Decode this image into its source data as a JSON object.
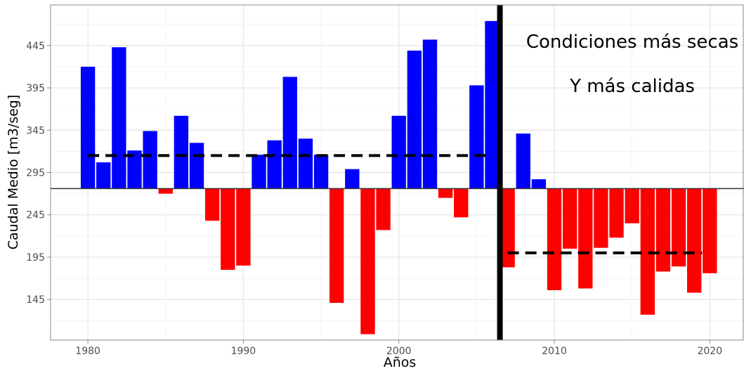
{
  "chart_data": {
    "type": "bar",
    "xlabel": "Años",
    "ylabel": "Caudal Medio [m3/seg]",
    "x_ticks": [
      1980,
      1990,
      2000,
      2010,
      2020
    ],
    "y_ticks": [
      145,
      195,
      245,
      295,
      345,
      395,
      445
    ],
    "xlim": [
      1977.6,
      2022.2
    ],
    "ylim": [
      97,
      493
    ],
    "baseline": 276,
    "grid": true,
    "bar_colors": {
      "above": "#0000ff",
      "below": "#ff0000"
    },
    "years": [
      1980,
      1981,
      1982,
      1983,
      1984,
      1985,
      1986,
      1987,
      1988,
      1989,
      1990,
      1991,
      1992,
      1993,
      1994,
      1995,
      1996,
      1997,
      1998,
      1999,
      2000,
      2001,
      2002,
      2003,
      2004,
      2005,
      2006,
      2007,
      2008,
      2009,
      2010,
      2011,
      2012,
      2013,
      2014,
      2015,
      2016,
      2017,
      2018,
      2019,
      2020
    ],
    "values": [
      420,
      307,
      443,
      321,
      344,
      270,
      362,
      330,
      238,
      180,
      185,
      316,
      333,
      408,
      335,
      316,
      141,
      299,
      104,
      227,
      362,
      439,
      452,
      265,
      242,
      398,
      474,
      183,
      341,
      287,
      156,
      205,
      158,
      206,
      218,
      235,
      127,
      178,
      184,
      153,
      176
    ],
    "reference_lines": [
      {
        "value": 315,
        "from": 1980,
        "to": 2006
      },
      {
        "value": 200,
        "from": 2007,
        "to": 2019.5
      }
    ],
    "divider_x": 2006.5,
    "annotations": [
      "Condiciones más secas",
      "Y más calidas"
    ]
  }
}
